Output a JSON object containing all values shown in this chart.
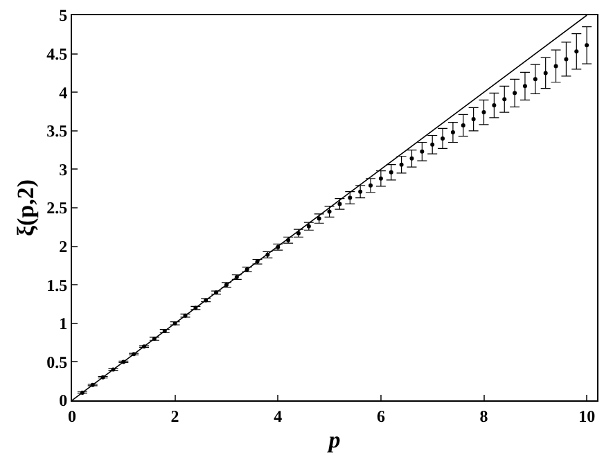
{
  "chart_data": {
    "type": "scatter",
    "xlabel": "p",
    "ylabel": "ξ(p,2)",
    "xlim": [
      0,
      10.2
    ],
    "ylim": [
      0,
      5
    ],
    "xticks": [
      0,
      2,
      4,
      6,
      8,
      10
    ],
    "yticks": [
      0,
      0.5,
      1,
      1.5,
      2,
      2.5,
      3,
      3.5,
      4,
      4.5,
      5
    ],
    "series": [
      {
        "type": "line",
        "color": "#000000",
        "marker": "none",
        "line_style": "solid",
        "x": [
          0,
          10
        ],
        "values": [
          0,
          5
        ]
      },
      {
        "color": "#000000",
        "marker": "circle",
        "x": [
          0.2,
          0.4,
          0.6,
          0.8,
          1.0,
          1.2,
          1.4,
          1.6,
          1.8,
          2.0,
          2.2,
          2.4,
          2.6,
          2.8,
          3.0,
          3.2,
          3.4,
          3.6,
          3.8,
          4.0,
          4.2,
          4.4,
          4.6,
          4.8,
          5.0,
          5.2,
          5.4,
          5.6,
          5.8,
          6.0,
          6.2,
          6.4,
          6.6,
          6.8,
          7.0,
          7.2,
          7.4,
          7.6,
          7.8,
          8.0,
          8.2,
          8.4,
          8.6,
          8.8,
          9.0,
          9.2,
          9.4,
          9.6,
          9.8,
          10.0
        ],
        "values": [
          0.1,
          0.2,
          0.3,
          0.4,
          0.5,
          0.6,
          0.7,
          0.8,
          0.9,
          1.0,
          1.1,
          1.2,
          1.3,
          1.4,
          1.5,
          1.6,
          1.7,
          1.8,
          1.89,
          1.99,
          2.08,
          2.17,
          2.26,
          2.36,
          2.45,
          2.55,
          2.63,
          2.71,
          2.79,
          2.88,
          2.96,
          3.06,
          3.14,
          3.23,
          3.32,
          3.4,
          3.48,
          3.57,
          3.65,
          3.74,
          3.83,
          3.91,
          3.99,
          4.08,
          4.17,
          4.25,
          4.34,
          4.43,
          4.53,
          4.61
        ],
        "errors": [
          0.01,
          0.01,
          0.01,
          0.01,
          0.01,
          0.01,
          0.01,
          0.02,
          0.02,
          0.02,
          0.02,
          0.02,
          0.02,
          0.02,
          0.03,
          0.03,
          0.03,
          0.03,
          0.04,
          0.04,
          0.04,
          0.05,
          0.05,
          0.06,
          0.07,
          0.07,
          0.08,
          0.08,
          0.09,
          0.1,
          0.1,
          0.11,
          0.11,
          0.12,
          0.12,
          0.13,
          0.13,
          0.14,
          0.15,
          0.16,
          0.16,
          0.17,
          0.18,
          0.18,
          0.19,
          0.2,
          0.21,
          0.22,
          0.23,
          0.24
        ]
      }
    ]
  }
}
